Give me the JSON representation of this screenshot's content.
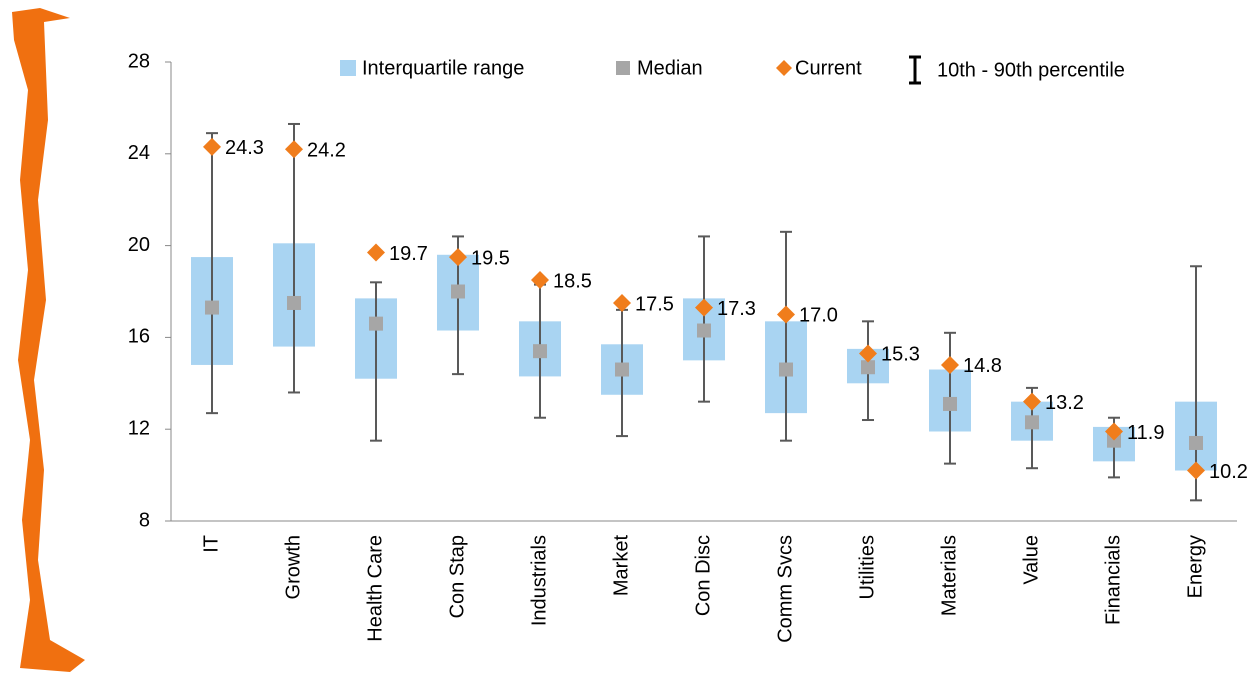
{
  "chart_data": {
    "type": "range",
    "categories": [
      "IT",
      "Growth",
      "Health Care",
      "Con Stap",
      "Industrials",
      "Market",
      "Con Disc",
      "Comm Svcs",
      "Utilities",
      "Materials",
      "Value",
      "Financials",
      "Energy"
    ],
    "iqr": {
      "name": "Interquartile range",
      "color": "#a9d4f2",
      "low": [
        14.8,
        15.6,
        14.2,
        16.3,
        14.3,
        13.5,
        15.0,
        12.7,
        14.0,
        11.9,
        11.5,
        10.6,
        10.2
      ],
      "high": [
        19.5,
        20.1,
        17.7,
        19.6,
        16.7,
        15.7,
        17.7,
        16.7,
        15.5,
        14.6,
        13.2,
        12.1,
        13.2
      ]
    },
    "median": {
      "name": "Median",
      "color": "#a6a6a6",
      "values": [
        17.3,
        17.5,
        16.6,
        18.0,
        15.4,
        14.6,
        16.3,
        14.6,
        14.7,
        13.1,
        12.3,
        11.5,
        11.4
      ]
    },
    "current": {
      "name": "Current",
      "color": "#f07d1c",
      "values": [
        24.3,
        24.2,
        19.7,
        19.5,
        18.5,
        17.5,
        17.3,
        17.0,
        15.3,
        14.8,
        13.2,
        11.9,
        10.2
      ],
      "value_labels": [
        "24.3",
        "24.2",
        "19.7",
        "19.5",
        "18.5",
        "17.5",
        "17.3",
        "17.0",
        "15.3",
        "14.8",
        "13.2",
        "11.9",
        "10.2"
      ]
    },
    "percentile": {
      "name": "10th - 90th percentile",
      "color": "#595959",
      "low": [
        12.7,
        13.6,
        11.5,
        14.4,
        12.5,
        11.7,
        13.2,
        11.5,
        12.4,
        10.5,
        10.3,
        9.9,
        8.9
      ],
      "high": [
        24.9,
        25.3,
        18.4,
        20.4,
        18.3,
        17.2,
        20.4,
        20.6,
        16.7,
        16.2,
        13.8,
        12.5,
        19.1
      ]
    },
    "ylim": [
      8,
      28
    ],
    "yticks": [
      8,
      12,
      16,
      20,
      24,
      28
    ],
    "grid": false
  }
}
